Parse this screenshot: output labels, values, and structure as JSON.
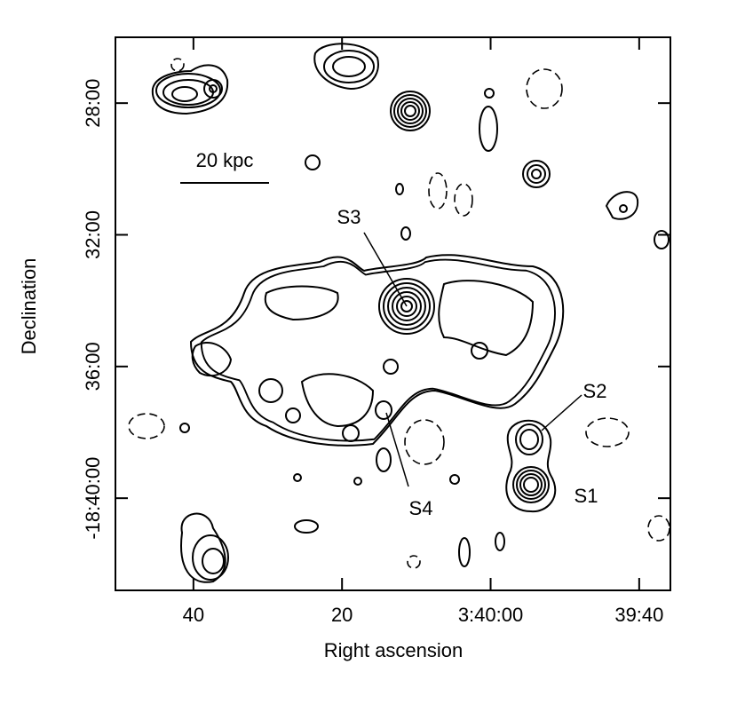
{
  "chart_data": {
    "type": "contour",
    "xlabel": "Right ascension",
    "ylabel": "Declination",
    "xlim": [
      13250.5,
      13175.8
    ],
    "xticks": [
      {
        "value": 13240,
        "label": "40"
      },
      {
        "value": 13220,
        "label": "20"
      },
      {
        "value": 13200,
        "label": "3:40:00"
      },
      {
        "value": 13180,
        "label": "39:40"
      }
    ],
    "ylim": [
      -1106.0,
      -1122.8
    ],
    "yticks": [
      {
        "value": -1108,
        "label": "28:00"
      },
      {
        "value": -1112,
        "label": "32:00"
      },
      {
        "value": -1116,
        "label": "36:00"
      },
      {
        "value": -1120,
        "label": "-18:40:00"
      }
    ],
    "annotations": {
      "scale_bar": "20 kpc",
      "s1": "S1",
      "s2": "S2",
      "s3": "S3",
      "s4": "S4"
    }
  }
}
